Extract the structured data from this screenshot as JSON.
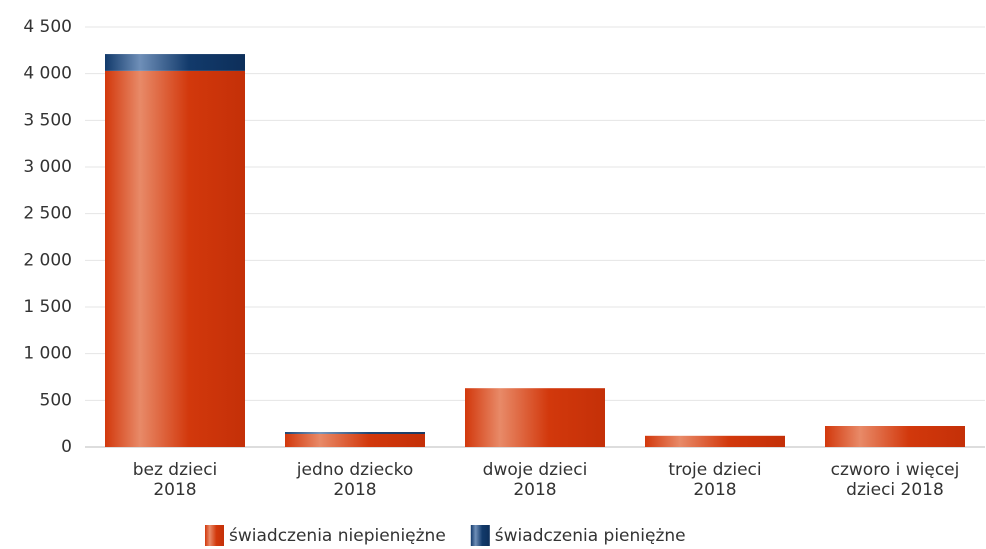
{
  "chart_data": {
    "type": "stacked_bar",
    "categories": [
      [
        "bez dzieci",
        "2018"
      ],
      [
        "jedno dziecko",
        "2018"
      ],
      [
        "dwoje dzieci",
        "2018"
      ],
      [
        "troje dzieci",
        "2018"
      ],
      [
        "czworo i więcej",
        "dzieci 2018"
      ]
    ],
    "series": [
      {
        "name": "świadczenia niepieniężne",
        "color": "#d2380c",
        "values": [
          4030,
          140,
          630,
          120,
          225
        ]
      },
      {
        "name": "świadczenia pieniężne",
        "color": "#123a6b",
        "values": [
          180,
          20,
          0,
          0,
          0
        ]
      }
    ],
    "ylim": [
      0,
      4500
    ],
    "yticks": [
      0,
      500,
      {
        "value": 1000,
        "label": "1 000"
      },
      {
        "value": 1500,
        "label": "1 500"
      },
      {
        "value": 2000,
        "label": "2 000"
      },
      {
        "value": 2500,
        "label": "2 500"
      },
      {
        "value": 3000,
        "label": "3 000"
      },
      {
        "value": 3500,
        "label": "3 500"
      },
      {
        "value": 4000,
        "label": "4 000"
      },
      {
        "value": 4500,
        "label": "4 500"
      }
    ],
    "grid": true,
    "legend": "bottom"
  }
}
